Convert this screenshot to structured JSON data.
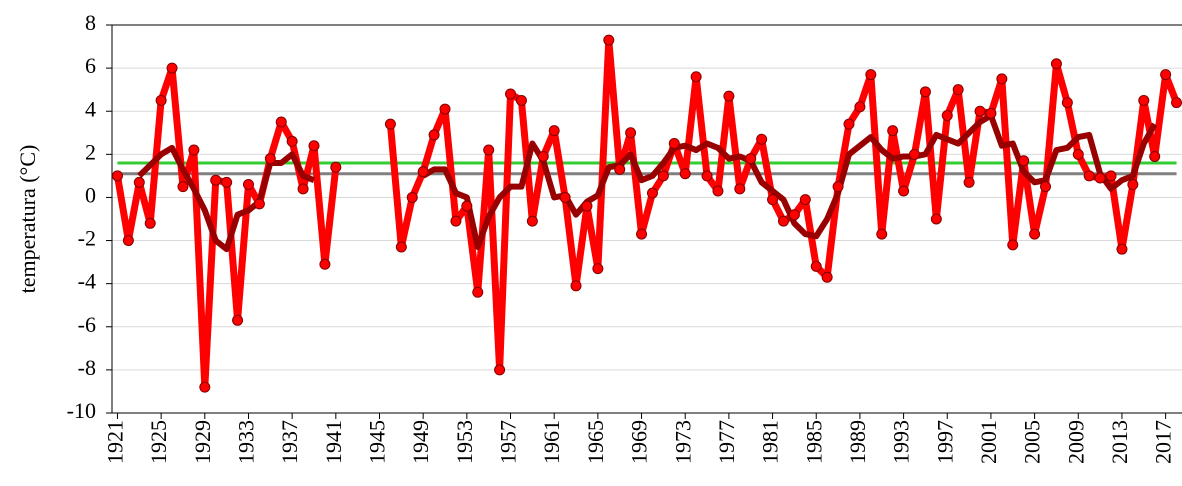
{
  "chart_data": {
    "type": "line",
    "y_label": "temperatura (°C)",
    "x": [
      1921,
      1922,
      1923,
      1924,
      1925,
      1926,
      1927,
      1928,
      1929,
      1930,
      1931,
      1932,
      1933,
      1934,
      1935,
      1936,
      1937,
      1938,
      1939,
      1940,
      1941,
      1942,
      1943,
      1944,
      1945,
      1946,
      1947,
      1948,
      1949,
      1950,
      1951,
      1952,
      1953,
      1954,
      1955,
      1956,
      1957,
      1958,
      1959,
      1960,
      1961,
      1962,
      1963,
      1964,
      1965,
      1966,
      1967,
      1968,
      1969,
      1970,
      1971,
      1972,
      1973,
      1974,
      1975,
      1976,
      1977,
      1978,
      1979,
      1980,
      1981,
      1982,
      1983,
      1984,
      1985,
      1986,
      1987,
      1988,
      1989,
      1990,
      1991,
      1992,
      1993,
      1994,
      1995,
      1996,
      1997,
      1998,
      1999,
      2000,
      2001,
      2002,
      2003,
      2004,
      2005,
      2006,
      2007,
      2008,
      2009,
      2010,
      2011,
      2012,
      2013,
      2014,
      2015,
      2016,
      2017,
      2018
    ],
    "series": [
      {
        "color": "#ff0000",
        "markers": true,
        "values": [
          1.0,
          -2.0,
          0.7,
          -1.2,
          4.5,
          6.0,
          0.5,
          2.2,
          -8.8,
          0.8,
          0.7,
          -5.7,
          0.6,
          -0.3,
          1.8,
          3.5,
          2.6,
          0.4,
          2.4,
          -3.1,
          1.4,
          null,
          null,
          null,
          null,
          3.4,
          -2.3,
          0.0,
          1.2,
          2.9,
          4.1,
          -1.1,
          -0.4,
          -4.4,
          2.2,
          -8.0,
          4.8,
          4.5,
          -1.1,
          1.9,
          3.1,
          0.0,
          -4.1,
          -0.4,
          -3.3,
          7.3,
          1.3,
          3.0,
          -1.7,
          0.2,
          1.0,
          2.5,
          1.1,
          5.6,
          1.0,
          0.3,
          4.7,
          0.4,
          1.8,
          2.7,
          -0.1,
          -1.1,
          -0.8,
          -0.1,
          -3.2,
          -3.7,
          0.5,
          3.4,
          4.2,
          5.7,
          -1.7,
          3.1,
          0.3,
          2.0,
          4.9,
          -1.0,
          3.8,
          5.0,
          0.7,
          4.0,
          3.9,
          5.5,
          -2.2,
          1.7,
          -1.7,
          0.5,
          6.2,
          4.4,
          2.0,
          1.0,
          0.9,
          1.0,
          -2.4,
          0.6,
          4.5,
          1.9,
          5.7,
          4.4
        ]
      },
      {
        "color": "#990000",
        "markers": false,
        "values": [
          null,
          null,
          1.0,
          1.5,
          2.0,
          2.3,
          1.3,
          0.4,
          -0.6,
          -2.0,
          -2.4,
          -0.8,
          -0.6,
          -0.2,
          1.6,
          1.6,
          2.0,
          1.0,
          0.8,
          null,
          null,
          null,
          null,
          null,
          null,
          null,
          null,
          null,
          1.0,
          1.3,
          1.3,
          0.2,
          0.0,
          -2.3,
          -0.9,
          0.0,
          0.5,
          0.5,
          2.5,
          1.7,
          0.0,
          0.1,
          -0.8,
          -0.2,
          0.1,
          1.4,
          1.5,
          2.0,
          0.8,
          1.0,
          1.6,
          2.3,
          2.4,
          2.2,
          2.5,
          2.3,
          1.8,
          1.9,
          1.7,
          0.7,
          0.3,
          -0.1,
          -1.2,
          -1.7,
          -1.8,
          -1.0,
          0.2,
          2.0,
          2.4,
          2.8,
          2.2,
          1.8,
          1.9,
          1.9,
          2.0,
          2.9,
          2.7,
          2.5,
          3.0,
          3.5,
          3.8,
          2.4,
          2.5,
          1.2,
          0.7,
          0.8,
          2.2,
          2.3,
          2.8,
          2.9,
          1.1,
          0.4,
          0.8,
          1.0,
          2.5,
          3.4,
          null,
          null
        ]
      }
    ],
    "reference_lines": [
      {
        "value": 1.6,
        "color": "#33cc33"
      },
      {
        "value": 1.1,
        "color": "#808080"
      }
    ],
    "xlim": [
      1920.5,
      2018.5
    ],
    "xticks": [
      1921,
      1925,
      1929,
      1933,
      1937,
      1941,
      1945,
      1949,
      1953,
      1957,
      1961,
      1965,
      1969,
      1973,
      1977,
      1981,
      1985,
      1989,
      1993,
      1997,
      2001,
      2005,
      2009,
      2013,
      2017
    ],
    "ylim": [
      -10,
      8
    ],
    "yticks": [
      -10,
      -8,
      -6,
      -4,
      -2,
      0,
      2,
      4,
      6,
      8
    ],
    "grid": true
  }
}
